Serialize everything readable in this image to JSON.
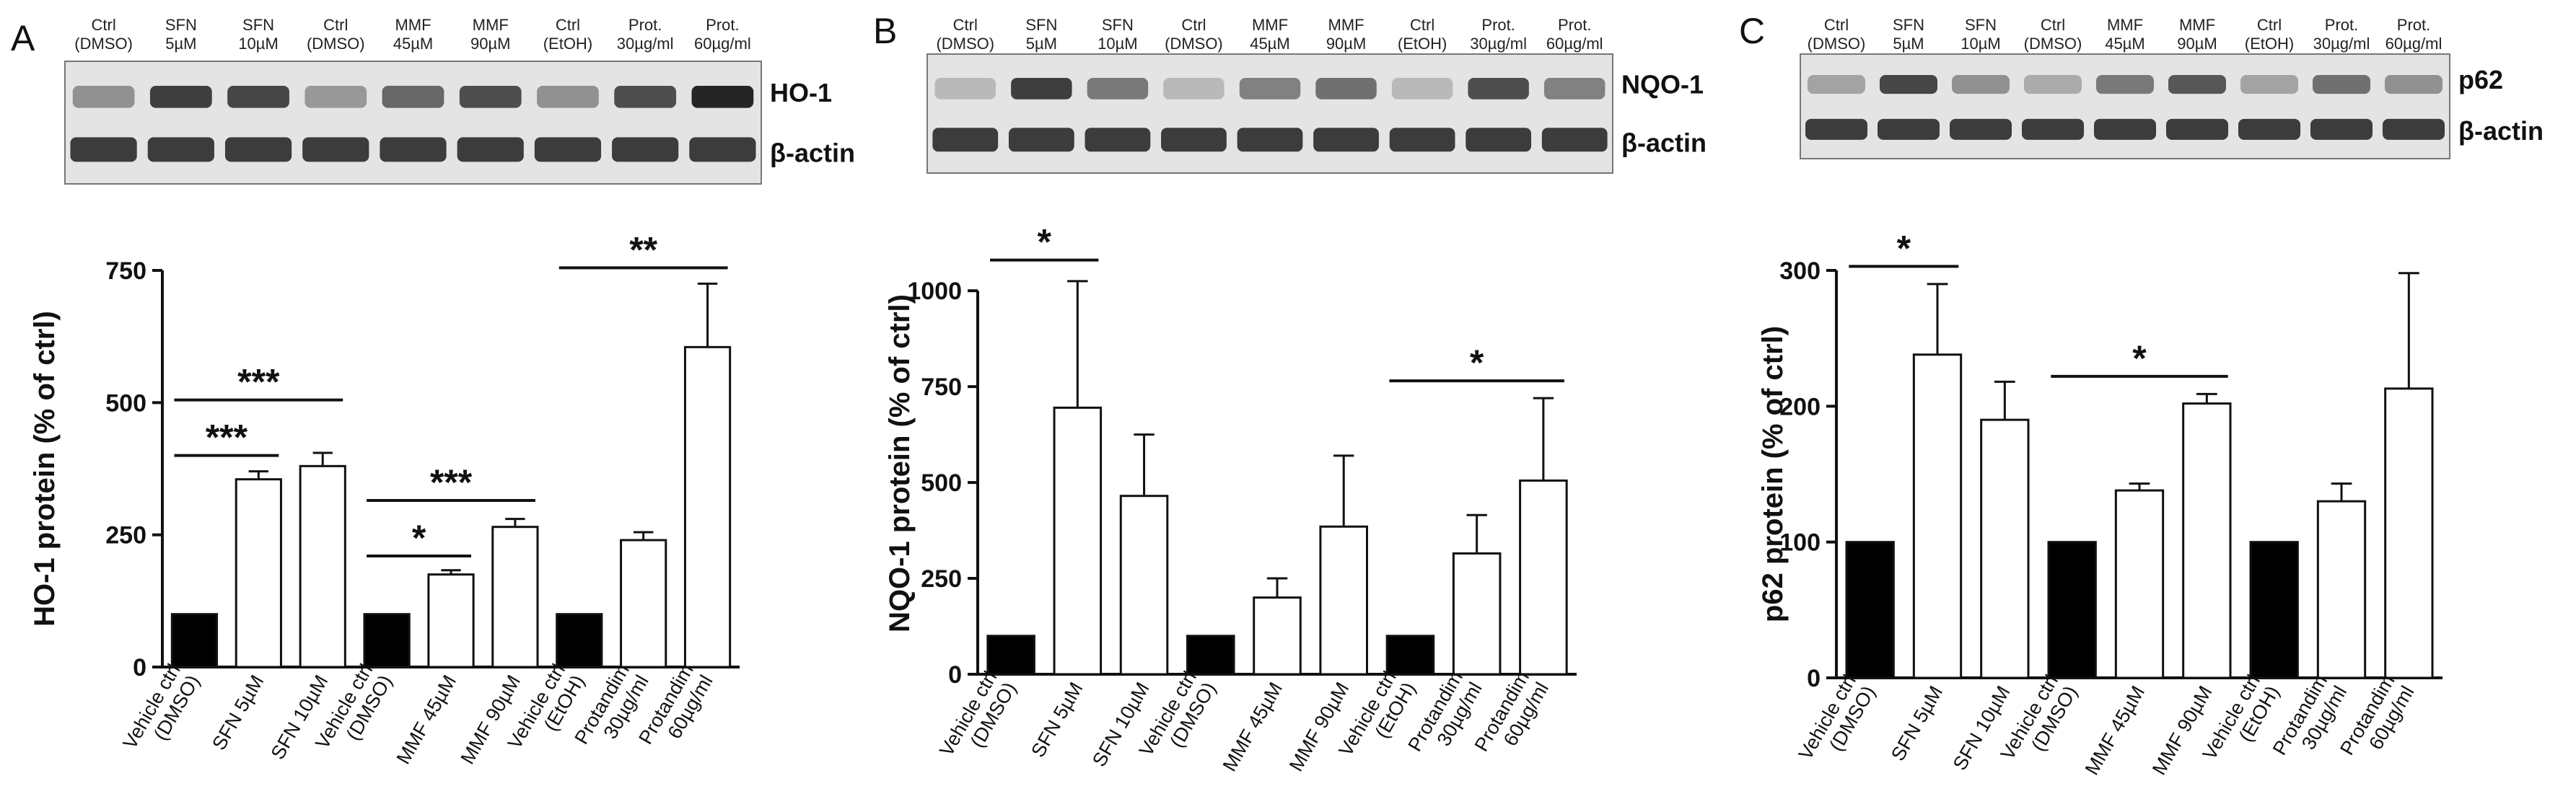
{
  "colors": {
    "control_bar": "#000000",
    "treated_bar": "#ffffff",
    "blot_bg": "#e4e4e4",
    "band": "#1e1e1e"
  },
  "chart_data": [
    {
      "type": "bar",
      "panel": "A",
      "blot": {
        "lanes": [
          [
            "Ctrl",
            "(DMSO)"
          ],
          [
            "SFN",
            "5µM"
          ],
          [
            "SFN",
            "10µM"
          ],
          [
            "Ctrl",
            "(DMSO)"
          ],
          [
            "MMF",
            "45µM"
          ],
          [
            "MMF",
            "90µM"
          ],
          [
            "Ctrl",
            "(EtOH)"
          ],
          [
            "Prot.",
            "30µg/ml"
          ],
          [
            "Prot.",
            "60µg/ml"
          ]
        ],
        "targets": [
          "HO-1",
          "β-actin"
        ],
        "target_intensity": [
          0.35,
          0.85,
          0.8,
          0.3,
          0.6,
          0.75,
          0.35,
          0.75,
          1.0
        ]
      },
      "ylabel": "HO-1 protein (% of ctrl)",
      "ylim": [
        0,
        750
      ],
      "yticks": [
        0,
        250,
        500,
        750
      ],
      "categories": [
        [
          "Vehicle ctrl",
          "(DMSO)"
        ],
        [
          "SFN 5µM"
        ],
        [
          "SFN 10µM"
        ],
        [
          "Vehicle ctrl",
          "(DMSO)"
        ],
        [
          "MMF 45µM"
        ],
        [
          "MMF 90µM"
        ],
        [
          "Vehicle ctrl",
          "(EtOH)"
        ],
        [
          "Protandim",
          "30µg/ml"
        ],
        [
          "Protandim",
          "60µg/ml"
        ]
      ],
      "values": [
        100,
        355,
        380,
        100,
        175,
        265,
        100,
        240,
        605
      ],
      "errors": [
        0,
        15,
        25,
        0,
        8,
        15,
        0,
        15,
        120
      ],
      "control_indices": [
        0,
        3,
        6
      ],
      "significance": [
        {
          "from": 0,
          "to": 1,
          "label": "***",
          "y": 400
        },
        {
          "from": 0,
          "to": 2,
          "label": "***",
          "y": 505
        },
        {
          "from": 3,
          "to": 4,
          "label": "*",
          "y": 210
        },
        {
          "from": 3,
          "to": 5,
          "label": "***",
          "y": 315
        },
        {
          "from": 6,
          "to": 8,
          "label": "**",
          "y": 755
        }
      ]
    },
    {
      "type": "bar",
      "panel": "B",
      "blot": {
        "lanes": [
          [
            "Ctrl",
            "(DMSO)"
          ],
          [
            "SFN",
            "5µM"
          ],
          [
            "SFN",
            "10µM"
          ],
          [
            "Ctrl",
            "(DMSO)"
          ],
          [
            "MMF",
            "45µM"
          ],
          [
            "MMF",
            "90µM"
          ],
          [
            "Ctrl",
            "(EtOH)"
          ],
          [
            "Prot.",
            "30µg/ml"
          ],
          [
            "Prot.",
            "60µg/ml"
          ]
        ],
        "targets": [
          "NQO-1",
          "β-actin"
        ],
        "target_intensity": [
          0.1,
          0.85,
          0.5,
          0.1,
          0.45,
          0.55,
          0.1,
          0.75,
          0.45
        ]
      },
      "ylabel": "NQO-1 protein (% of ctrl)",
      "ylim": [
        0,
        1100
      ],
      "yticks": [
        0,
        250,
        500,
        750,
        1000
      ],
      "categories": [
        [
          "Vehicle ctrl",
          "(DMSO)"
        ],
        [
          "SFN 5µM"
        ],
        [
          "SFN 10µM"
        ],
        [
          "Vehicle ctrl",
          "(DMSO)"
        ],
        [
          "MMF 45µM"
        ],
        [
          "MMF 90µM"
        ],
        [
          "Vehicle ctrl",
          "(EtOH)"
        ],
        [
          "Protandim",
          "30µg/ml"
        ],
        [
          "Protandim",
          "60µg/ml"
        ]
      ],
      "values": [
        100,
        695,
        465,
        100,
        200,
        385,
        100,
        315,
        505
      ],
      "errors": [
        0,
        330,
        160,
        0,
        50,
        185,
        0,
        100,
        215
      ],
      "control_indices": [
        0,
        3,
        6
      ],
      "significance": [
        {
          "from": 0,
          "to": 1,
          "label": "*",
          "y": 1080
        },
        {
          "from": 6,
          "to": 8,
          "label": "*",
          "y": 765
        }
      ]
    },
    {
      "type": "bar",
      "panel": "C",
      "blot": {
        "lanes": [
          [
            "Ctrl",
            "(DMSO)"
          ],
          [
            "SFN",
            "5µM"
          ],
          [
            "SFN",
            "10µM"
          ],
          [
            "Ctrl",
            "(DMSO)"
          ],
          [
            "MMF",
            "45µM"
          ],
          [
            "MMF",
            "90µM"
          ],
          [
            "Ctrl",
            "(EtOH)"
          ],
          [
            "Prot.",
            "30µg/ml"
          ],
          [
            "Prot.",
            "60µg/ml"
          ]
        ],
        "targets": [
          "p62",
          "β-actin"
        ],
        "target_intensity": [
          0.25,
          0.8,
          0.35,
          0.2,
          0.5,
          0.7,
          0.25,
          0.55,
          0.35
        ]
      },
      "ylabel": "p62 protein (% of ctrl)",
      "ylim": [
        0,
        300
      ],
      "yticks": [
        0,
        100,
        200,
        300
      ],
      "categories": [
        [
          "Vehicle ctrl",
          "(DMSO)"
        ],
        [
          "SFN 5µM"
        ],
        [
          "SFN 10µM"
        ],
        [
          "Vehicle ctrl",
          "(DMSO)"
        ],
        [
          "MMF 45µM"
        ],
        [
          "MMF 90µM"
        ],
        [
          "Vehicle ctrl",
          "(EtOH)"
        ],
        [
          "Protandim",
          "30µg/ml"
        ],
        [
          "Protandim",
          "60µg/ml"
        ]
      ],
      "values": [
        100,
        238,
        190,
        100,
        138,
        202,
        100,
        130,
        213
      ],
      "errors": [
        0,
        52,
        28,
        0,
        5,
        7,
        0,
        13,
        85
      ],
      "control_indices": [
        0,
        3,
        6
      ],
      "significance": [
        {
          "from": 0,
          "to": 1,
          "label": "*",
          "y": 303
        },
        {
          "from": 3,
          "to": 5,
          "label": "*",
          "y": 222
        }
      ]
    }
  ]
}
